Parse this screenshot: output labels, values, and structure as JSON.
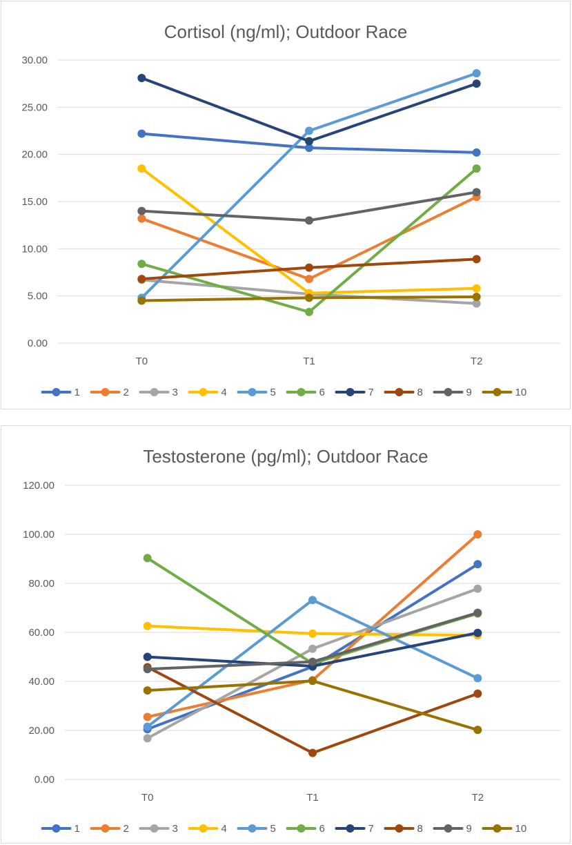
{
  "chart_data": [
    {
      "type": "line",
      "title": "Cortisol (ng/ml); Outdoor Race",
      "xlabel": "",
      "ylabel": "",
      "categories": [
        "T0",
        "T1",
        "T2"
      ],
      "ylim": [
        0,
        30
      ],
      "yticks": [
        "0.00",
        "5.00",
        "10.00",
        "15.00",
        "20.00",
        "25.00",
        "30.00"
      ],
      "grid": true,
      "legend": "bottom",
      "series": [
        {
          "name": "1",
          "color": "#4472C4",
          "values": [
            22.2,
            20.7,
            20.2
          ]
        },
        {
          "name": "2",
          "color": "#ED7D31",
          "values": [
            13.2,
            6.8,
            15.5
          ]
        },
        {
          "name": "3",
          "color": "#A5A5A5",
          "values": [
            6.7,
            5.2,
            4.2
          ]
        },
        {
          "name": "4",
          "color": "#FFC000",
          "values": [
            18.5,
            5.3,
            5.8
          ]
        },
        {
          "name": "5",
          "color": "#5B9BD5",
          "values": [
            4.8,
            22.5,
            28.6
          ]
        },
        {
          "name": "6",
          "color": "#70AD47",
          "values": [
            8.4,
            3.3,
            18.5
          ]
        },
        {
          "name": "7",
          "color": "#264478",
          "values": [
            28.1,
            21.4,
            27.5
          ]
        },
        {
          "name": "8",
          "color": "#9E480E",
          "values": [
            6.8,
            8.0,
            8.9
          ]
        },
        {
          "name": "9",
          "color": "#636363",
          "values": [
            14.0,
            13.0,
            16.0
          ]
        },
        {
          "name": "10",
          "color": "#997300",
          "values": [
            4.5,
            4.8,
            4.9
          ]
        }
      ]
    },
    {
      "type": "line",
      "title": "Testosterone (pg/ml); Outdoor Race",
      "xlabel": "",
      "ylabel": "",
      "categories": [
        "T0",
        "T1",
        "T2"
      ],
      "ylim": [
        0,
        120
      ],
      "yticks": [
        "0.00",
        "20.00",
        "40.00",
        "60.00",
        "80.00",
        "100.00",
        "120.00"
      ],
      "grid": true,
      "legend": "bottom",
      "series": [
        {
          "name": "1",
          "color": "#4472C4",
          "values": [
            20.5,
            46.0,
            87.8
          ]
        },
        {
          "name": "2",
          "color": "#ED7D31",
          "values": [
            25.5,
            40.5,
            100.0
          ]
        },
        {
          "name": "3",
          "color": "#A5A5A5",
          "values": [
            16.8,
            53.3,
            77.8
          ]
        },
        {
          "name": "4",
          "color": "#FFC000",
          "values": [
            62.6,
            59.5,
            58.8
          ]
        },
        {
          "name": "5",
          "color": "#5B9BD5",
          "values": [
            21.5,
            73.2,
            41.3
          ]
        },
        {
          "name": "6",
          "color": "#70AD47",
          "values": [
            90.3,
            47.3,
            67.7
          ]
        },
        {
          "name": "7",
          "color": "#264478",
          "values": [
            50.0,
            46.2,
            59.8
          ]
        },
        {
          "name": "8",
          "color": "#9E480E",
          "values": [
            45.8,
            10.8,
            35.0
          ]
        },
        {
          "name": "9",
          "color": "#636363",
          "values": [
            45.0,
            48.0,
            68.0
          ]
        },
        {
          "name": "10",
          "color": "#997300",
          "values": [
            36.3,
            40.2,
            20.2
          ]
        }
      ]
    }
  ]
}
